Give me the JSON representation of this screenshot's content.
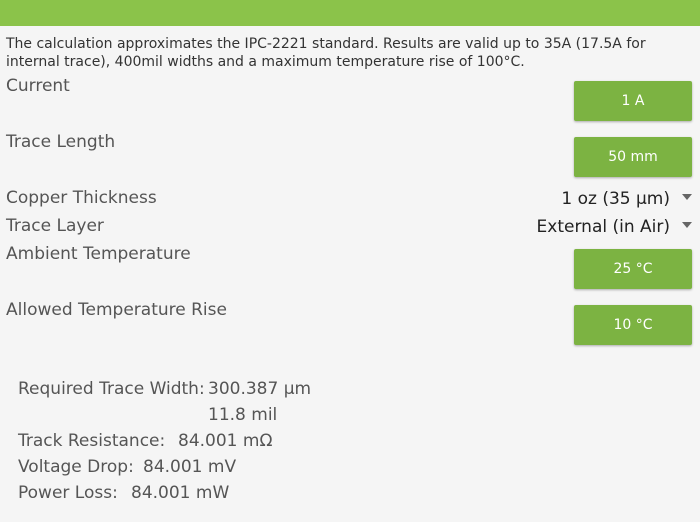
{
  "description": "The calculation approximates the IPC-2221 standard. Results are valid up to 35A (17.5A for internal trace), 400mil widths and a maximum temperature rise of 100°C.",
  "inputs": [
    {
      "label": "Current",
      "button": "1 A"
    },
    {
      "label": "Trace Length",
      "button": "50 mm"
    },
    {
      "label": "Copper Thickness",
      "select": "1 oz (35 µm)"
    },
    {
      "label": "Trace Layer",
      "select": "External (in Air)"
    },
    {
      "label": "Ambient Temperature",
      "button": "25 °C"
    },
    {
      "label": "Allowed Temperature Rise",
      "button": "10 °C"
    }
  ],
  "results": [
    {
      "label": "Required Trace Width:",
      "value": "300.387 µm",
      "value2": "11.8 mil"
    },
    {
      "label": "Track Resistance:",
      "value": "84.001 mΩ"
    },
    {
      "label": "Voltage Drop:",
      "value": "84.001 mV"
    },
    {
      "label": "Power Loss:",
      "value": "84.001 mW"
    }
  ]
}
